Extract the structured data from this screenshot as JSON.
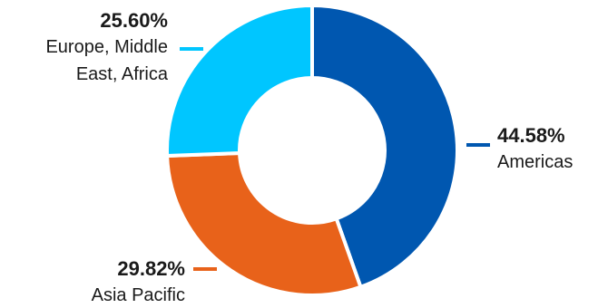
{
  "chart_data": {
    "type": "pie",
    "title": "",
    "series": [
      {
        "name": "Americas",
        "value": 44.58,
        "value_label": "44.58%",
        "label_lines": [
          "Americas"
        ],
        "color": "#0057b0"
      },
      {
        "name": "Asia Pacific",
        "value": 29.82,
        "value_label": "29.82%",
        "label_lines": [
          "Asia Pacific"
        ],
        "color": "#e8621a"
      },
      {
        "name": "Europe, Middle East, Africa",
        "value": 25.6,
        "value_label": "25.60%",
        "label_lines": [
          "Europe, Middle",
          "East, Africa"
        ],
        "color": "#00c6ff"
      }
    ],
    "donut": true,
    "start_angle_deg": 0,
    "direction": "clockwise",
    "legend": "none"
  }
}
